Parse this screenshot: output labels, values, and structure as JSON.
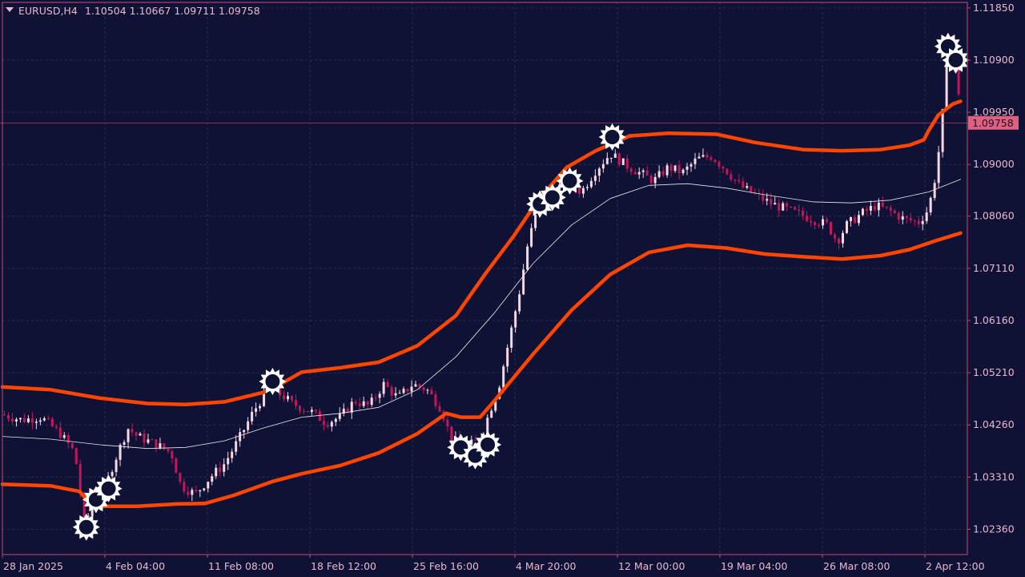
{
  "header": {
    "symbol_timeframe": "EURUSD,H4",
    "ohlc": "1.10504 1.10667 1.09711 1.09758"
  },
  "current_price_label": "1.09758",
  "colors": {
    "background": "#0f1234",
    "grid": "#2a2d4e",
    "axis": "#c44a7a",
    "text": "#e8b9cf",
    "bull_candle": "#f6d8e4",
    "bear_candle": "#c2185b",
    "band": "#ff4500",
    "middle_line": "#e8e8e8",
    "signal_marker": "#ffffff",
    "price_tag_bg": "#e0607e"
  },
  "chart_data": {
    "type": "candlestick",
    "symbol": "EURUSD",
    "timeframe": "H4",
    "ylim": [
      1.019,
      1.1195
    ],
    "y_ticks": [
      "1.11850",
      "1.10900",
      "1.09950",
      "1.09000",
      "1.08060",
      "1.07110",
      "1.06160",
      "1.05210",
      "1.04260",
      "1.03310",
      "1.02360"
    ],
    "x_ticks": [
      "28 Jan 2025",
      "4 Feb 04:00",
      "11 Feb 08:00",
      "18 Feb 12:00",
      "25 Feb 16:00",
      "4 Mar 20:00",
      "12 Mar 00:00",
      "19 Mar 04:00",
      "26 Mar 08:00",
      "2 Apr 12:00"
    ],
    "grid": true,
    "last_price": 1.09758,
    "bands": {
      "upper": [
        {
          "t": 0,
          "y": 1.0495
        },
        {
          "t": 0.05,
          "y": 1.049
        },
        {
          "t": 0.1,
          "y": 1.0475
        },
        {
          "t": 0.15,
          "y": 1.0465
        },
        {
          "t": 0.19,
          "y": 1.0463
        },
        {
          "t": 0.23,
          "y": 1.0468
        },
        {
          "t": 0.27,
          "y": 1.0485
        },
        {
          "t": 0.29,
          "y": 1.0502
        },
        {
          "t": 0.31,
          "y": 1.0522
        },
        {
          "t": 0.35,
          "y": 1.053
        },
        {
          "t": 0.39,
          "y": 1.054
        },
        {
          "t": 0.43,
          "y": 1.057
        },
        {
          "t": 0.47,
          "y": 1.0625
        },
        {
          "t": 0.5,
          "y": 1.07
        },
        {
          "t": 0.53,
          "y": 1.077
        },
        {
          "t": 0.555,
          "y": 1.0835
        },
        {
          "t": 0.585,
          "y": 1.0895
        },
        {
          "t": 0.615,
          "y": 1.0925
        },
        {
          "t": 0.65,
          "y": 1.0952
        },
        {
          "t": 0.69,
          "y": 1.0957
        },
        {
          "t": 0.74,
          "y": 1.0955
        },
        {
          "t": 0.78,
          "y": 1.094
        },
        {
          "t": 0.83,
          "y": 1.0927
        },
        {
          "t": 0.87,
          "y": 1.0925
        },
        {
          "t": 0.91,
          "y": 1.0927
        },
        {
          "t": 0.94,
          "y": 1.0935
        },
        {
          "t": 0.955,
          "y": 1.0945
        },
        {
          "t": 0.96,
          "y": 1.0962
        },
        {
          "t": 0.97,
          "y": 1.099
        },
        {
          "t": 0.985,
          "y": 1.101
        },
        {
          "t": 0.993,
          "y": 1.1015
        }
      ],
      "middle": [
        {
          "t": 0,
          "y": 1.0405
        },
        {
          "t": 0.05,
          "y": 1.04
        },
        {
          "t": 0.1,
          "y": 1.039
        },
        {
          "t": 0.15,
          "y": 1.0383
        },
        {
          "t": 0.19,
          "y": 1.0385
        },
        {
          "t": 0.23,
          "y": 1.0397
        },
        {
          "t": 0.27,
          "y": 1.042
        },
        {
          "t": 0.31,
          "y": 1.044
        },
        {
          "t": 0.35,
          "y": 1.0447
        },
        {
          "t": 0.39,
          "y": 1.0458
        },
        {
          "t": 0.43,
          "y": 1.049
        },
        {
          "t": 0.47,
          "y": 1.055
        },
        {
          "t": 0.51,
          "y": 1.063
        },
        {
          "t": 0.55,
          "y": 1.072
        },
        {
          "t": 0.59,
          "y": 1.079
        },
        {
          "t": 0.63,
          "y": 1.0838
        },
        {
          "t": 0.67,
          "y": 1.0862
        },
        {
          "t": 0.71,
          "y": 1.0865
        },
        {
          "t": 0.75,
          "y": 1.0857
        },
        {
          "t": 0.79,
          "y": 1.0845
        },
        {
          "t": 0.84,
          "y": 1.0832
        },
        {
          "t": 0.88,
          "y": 1.083
        },
        {
          "t": 0.92,
          "y": 1.0835
        },
        {
          "t": 0.96,
          "y": 1.085
        },
        {
          "t": 0.993,
          "y": 1.0873
        }
      ],
      "lower": [
        {
          "t": 0,
          "y": 1.0318
        },
        {
          "t": 0.05,
          "y": 1.0315
        },
        {
          "t": 0.08,
          "y": 1.0305
        },
        {
          "t": 0.09,
          "y": 1.0285
        },
        {
          "t": 0.1,
          "y": 1.0278
        },
        {
          "t": 0.14,
          "y": 1.0278
        },
        {
          "t": 0.18,
          "y": 1.0282
        },
        {
          "t": 0.21,
          "y": 1.0283
        },
        {
          "t": 0.24,
          "y": 1.0298
        },
        {
          "t": 0.28,
          "y": 1.0323
        },
        {
          "t": 0.31,
          "y": 1.0337
        },
        {
          "t": 0.35,
          "y": 1.0352
        },
        {
          "t": 0.39,
          "y": 1.0375
        },
        {
          "t": 0.43,
          "y": 1.041
        },
        {
          "t": 0.46,
          "y": 1.0447
        },
        {
          "t": 0.475,
          "y": 1.044
        },
        {
          "t": 0.495,
          "y": 1.044
        },
        {
          "t": 0.51,
          "y": 1.047
        },
        {
          "t": 0.55,
          "y": 1.0555
        },
        {
          "t": 0.59,
          "y": 1.0635
        },
        {
          "t": 0.63,
          "y": 1.07
        },
        {
          "t": 0.67,
          "y": 1.074
        },
        {
          "t": 0.71,
          "y": 1.0753
        },
        {
          "t": 0.75,
          "y": 1.0748
        },
        {
          "t": 0.79,
          "y": 1.0737
        },
        {
          "t": 0.83,
          "y": 1.0732
        },
        {
          "t": 0.87,
          "y": 1.0728
        },
        {
          "t": 0.91,
          "y": 1.0734
        },
        {
          "t": 0.94,
          "y": 1.0745
        },
        {
          "t": 0.965,
          "y": 1.076
        },
        {
          "t": 0.993,
          "y": 1.0775
        }
      ]
    },
    "price_path": [
      {
        "t": 0,
        "y": 1.0445
      },
      {
        "t": 0.02,
        "y": 1.0435
      },
      {
        "t": 0.04,
        "y": 1.044
      },
      {
        "t": 0.06,
        "y": 1.041
      },
      {
        "t": 0.075,
        "y": 1.0375
      },
      {
        "t": 0.085,
        "y": 1.0248
      },
      {
        "t": 0.095,
        "y": 1.028
      },
      {
        "t": 0.105,
        "y": 1.0305
      },
      {
        "t": 0.115,
        "y": 1.0355
      },
      {
        "t": 0.13,
        "y": 1.042
      },
      {
        "t": 0.14,
        "y": 1.0405
      },
      {
        "t": 0.16,
        "y": 1.039
      },
      {
        "t": 0.175,
        "y": 1.0375
      },
      {
        "t": 0.185,
        "y": 1.0315
      },
      {
        "t": 0.2,
        "y": 1.03
      },
      {
        "t": 0.215,
        "y": 1.033
      },
      {
        "t": 0.23,
        "y": 1.0355
      },
      {
        "t": 0.245,
        "y": 1.04
      },
      {
        "t": 0.26,
        "y": 1.045
      },
      {
        "t": 0.275,
        "y": 1.049
      },
      {
        "t": 0.29,
        "y": 1.048
      },
      {
        "t": 0.3,
        "y": 1.0465
      },
      {
        "t": 0.32,
        "y": 1.045
      },
      {
        "t": 0.335,
        "y": 1.043
      },
      {
        "t": 0.35,
        "y": 1.044
      },
      {
        "t": 0.365,
        "y": 1.047
      },
      {
        "t": 0.38,
        "y": 1.046
      },
      {
        "t": 0.395,
        "y": 1.05
      },
      {
        "t": 0.41,
        "y": 1.0475
      },
      {
        "t": 0.425,
        "y": 1.05
      },
      {
        "t": 0.44,
        "y": 1.049
      },
      {
        "t": 0.455,
        "y": 1.0455
      },
      {
        "t": 0.465,
        "y": 1.04
      },
      {
        "t": 0.48,
        "y": 1.0385
      },
      {
        "t": 0.495,
        "y": 1.04
      },
      {
        "t": 0.505,
        "y": 1.045
      },
      {
        "t": 0.515,
        "y": 1.05
      },
      {
        "t": 0.525,
        "y": 1.058
      },
      {
        "t": 0.535,
        "y": 1.066
      },
      {
        "t": 0.545,
        "y": 1.076
      },
      {
        "t": 0.555,
        "y": 1.082
      },
      {
        "t": 0.57,
        "y": 1.085
      },
      {
        "t": 0.585,
        "y": 1.087
      },
      {
        "t": 0.6,
        "y": 1.085
      },
      {
        "t": 0.615,
        "y": 1.089
      },
      {
        "t": 0.63,
        "y": 1.092
      },
      {
        "t": 0.645,
        "y": 1.09
      },
      {
        "t": 0.66,
        "y": 1.0885
      },
      {
        "t": 0.675,
        "y": 1.087
      },
      {
        "t": 0.69,
        "y": 1.0895
      },
      {
        "t": 0.705,
        "y": 1.0885
      },
      {
        "t": 0.72,
        "y": 1.091
      },
      {
        "t": 0.735,
        "y": 1.0915
      },
      {
        "t": 0.75,
        "y": 1.089
      },
      {
        "t": 0.765,
        "y": 1.086
      },
      {
        "t": 0.78,
        "y": 1.0845
      },
      {
        "t": 0.795,
        "y": 1.083
      },
      {
        "t": 0.81,
        "y": 1.082
      },
      {
        "t": 0.825,
        "y": 1.081
      },
      {
        "t": 0.84,
        "y": 1.08
      },
      {
        "t": 0.855,
        "y": 1.079
      },
      {
        "t": 0.865,
        "y": 1.076
      },
      {
        "t": 0.875,
        "y": 1.079
      },
      {
        "t": 0.89,
        "y": 1.081
      },
      {
        "t": 0.905,
        "y": 1.0825
      },
      {
        "t": 0.92,
        "y": 1.0815
      },
      {
        "t": 0.935,
        "y": 1.08
      },
      {
        "t": 0.95,
        "y": 1.0795
      },
      {
        "t": 0.96,
        "y": 1.082
      },
      {
        "t": 0.967,
        "y": 1.088
      },
      {
        "t": 0.973,
        "y": 1.096
      },
      {
        "t": 0.978,
        "y": 1.108
      },
      {
        "t": 0.983,
        "y": 1.1105
      },
      {
        "t": 0.988,
        "y": 1.109
      },
      {
        "t": 0.993,
        "y": 1.0976
      }
    ],
    "signals": [
      {
        "t": 0.087,
        "y": 1.024
      },
      {
        "t": 0.097,
        "y": 1.029
      },
      {
        "t": 0.11,
        "y": 1.031
      },
      {
        "t": 0.28,
        "y": 1.0505
      },
      {
        "t": 0.475,
        "y": 1.0385
      },
      {
        "t": 0.49,
        "y": 1.037
      },
      {
        "t": 0.503,
        "y": 1.039
      },
      {
        "t": 0.557,
        "y": 1.0828
      },
      {
        "t": 0.57,
        "y": 1.084
      },
      {
        "t": 0.588,
        "y": 1.087
      },
      {
        "t": 0.632,
        "y": 1.095
      },
      {
        "t": 0.98,
        "y": 1.1115
      },
      {
        "t": 0.988,
        "y": 1.109
      }
    ]
  }
}
